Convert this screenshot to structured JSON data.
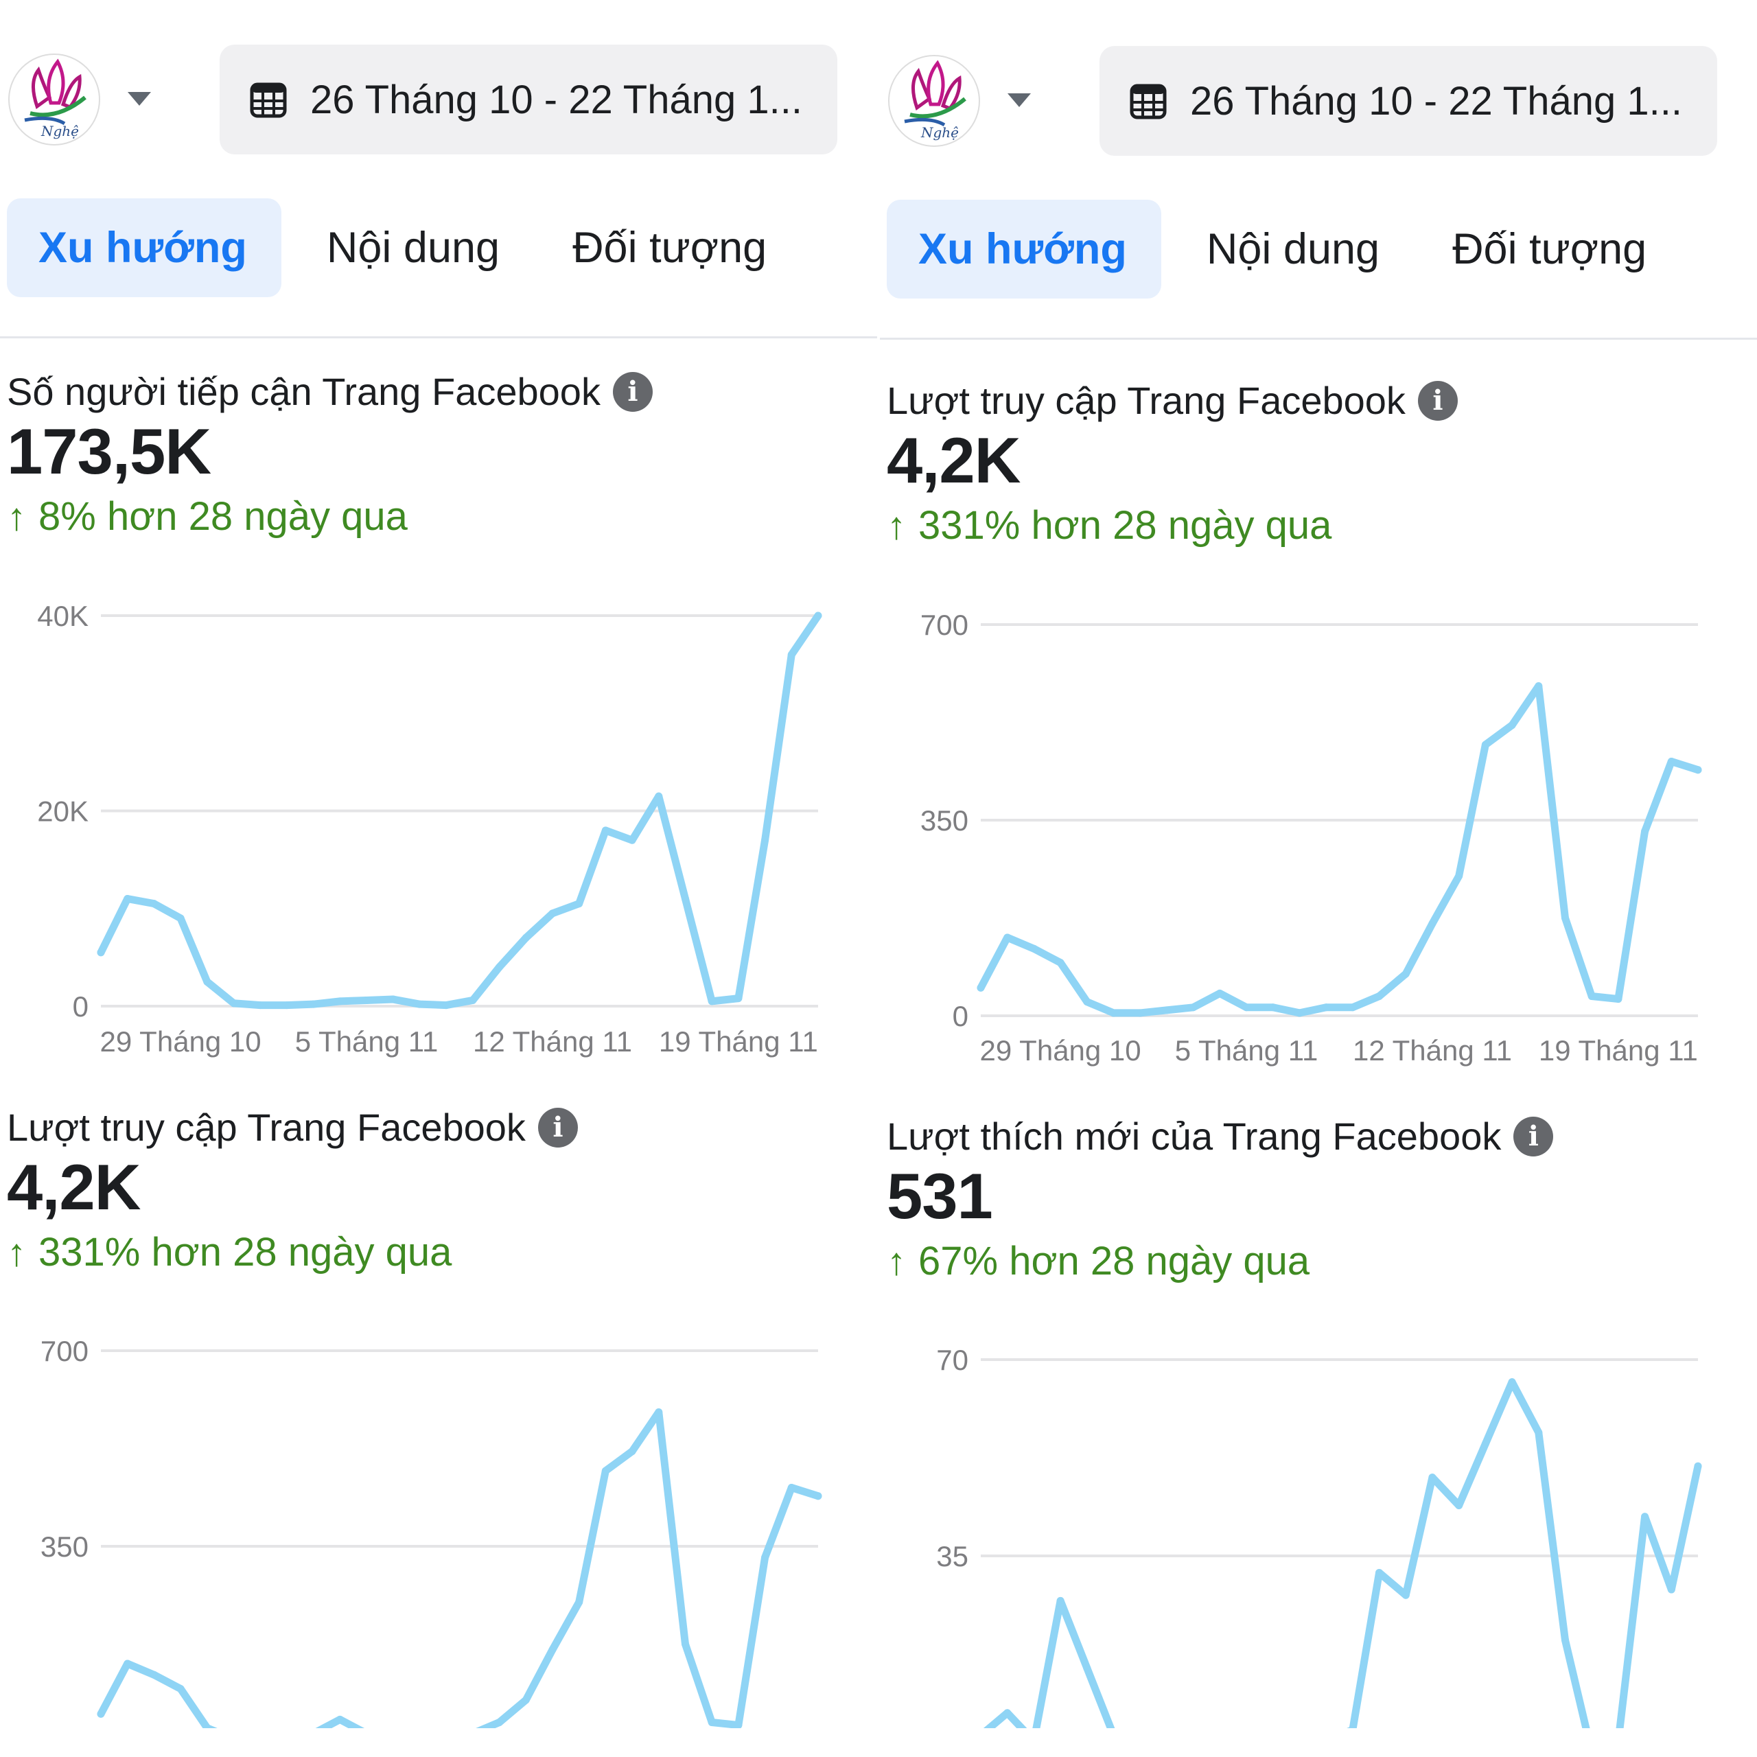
{
  "header": {
    "logo_text": "Nghệ",
    "date_range": "26 Tháng 10 - 22 Tháng 1...",
    "tabs": [
      "Xu hướng",
      "Nội dung",
      "Đối tượng"
    ],
    "active_tab": "Xu hướng"
  },
  "colors": {
    "accent": "#1877f2",
    "tab_active_bg": "#e7f0fd",
    "positive": "#3f8a22",
    "line": "#8fd4f5",
    "grid": "#e4e4e6"
  },
  "panels": [
    {
      "metrics": [
        {
          "title": "Số người tiếp cận Trang Facebook",
          "value": "173,5K",
          "change": "8% hơn 28 ngày qua"
        },
        {
          "title": "Lượt truy cập Trang Facebook",
          "value": "4,2K",
          "change": "331% hơn 28 ngày qua"
        }
      ]
    },
    {
      "metrics": [
        {
          "title": "Lượt truy cập Trang Facebook",
          "value": "4,2K",
          "change": "331% hơn 28 ngày qua"
        },
        {
          "title": "Lượt thích mới của Trang Facebook",
          "value": "531",
          "change": "67% hơn 28 ngày qua"
        }
      ]
    }
  ],
  "chart_data": [
    {
      "type": "line",
      "title": "Số người tiếp cận Trang Facebook",
      "x_tick_labels": [
        "29 Tháng 10",
        "5 Tháng 11",
        "12 Tháng 11",
        "19 Tháng 11"
      ],
      "x_tick_index": [
        3,
        10,
        17,
        24
      ],
      "y_tick_labels": [
        "0",
        "20K",
        "40K"
      ],
      "y_ticks": [
        0,
        20000,
        40000
      ],
      "ylim": [
        0,
        40000
      ],
      "grid": true,
      "values": [
        5500,
        11000,
        10500,
        9000,
        2500,
        300,
        100,
        100,
        200,
        500,
        600,
        700,
        200,
        100,
        600,
        4000,
        7000,
        9500,
        10500,
        18000,
        17000,
        21500,
        11000,
        500,
        800,
        17000,
        36000,
        40000
      ]
    },
    {
      "type": "line",
      "title": "Lượt truy cập Trang Facebook",
      "x_tick_labels": [],
      "x_tick_index": [],
      "y_tick_labels": [
        "350",
        "700"
      ],
      "y_ticks": [
        350,
        700
      ],
      "ylim": [
        0,
        700
      ],
      "grid": true,
      "values": [
        50,
        140,
        120,
        95,
        25,
        5,
        5,
        10,
        15,
        40,
        15,
        15,
        5,
        15,
        15,
        35,
        75,
        165,
        250,
        485,
        520,
        590,
        175,
        35,
        30,
        330,
        455,
        440
      ]
    },
    {
      "type": "line",
      "title": "Lượt truy cập Trang Facebook",
      "x_tick_labels": [
        "29 Tháng 10",
        "5 Tháng 11",
        "12 Tháng 11",
        "19 Tháng 11"
      ],
      "x_tick_index": [
        3,
        10,
        17,
        24
      ],
      "y_tick_labels": [
        "0",
        "350",
        "700"
      ],
      "y_ticks": [
        0,
        350,
        700
      ],
      "ylim": [
        0,
        700
      ],
      "grid": true,
      "values": [
        50,
        140,
        120,
        95,
        25,
        5,
        5,
        10,
        15,
        40,
        15,
        15,
        5,
        15,
        15,
        35,
        75,
        165,
        250,
        485,
        520,
        590,
        175,
        35,
        30,
        330,
        455,
        440
      ]
    },
    {
      "type": "line",
      "title": "Lượt thích mới của Trang Facebook",
      "x_tick_labels": [],
      "x_tick_index": [],
      "y_tick_labels": [
        "35",
        "70"
      ],
      "y_ticks": [
        35,
        70
      ],
      "ylim": [
        0,
        70
      ],
      "grid": true,
      "values": [
        3,
        7,
        2,
        27,
        15,
        3,
        2,
        2,
        1,
        2,
        2,
        1,
        2,
        2,
        4,
        32,
        28,
        49,
        44,
        55,
        66,
        57,
        20,
        0,
        2,
        42,
        29,
        51
      ]
    }
  ]
}
